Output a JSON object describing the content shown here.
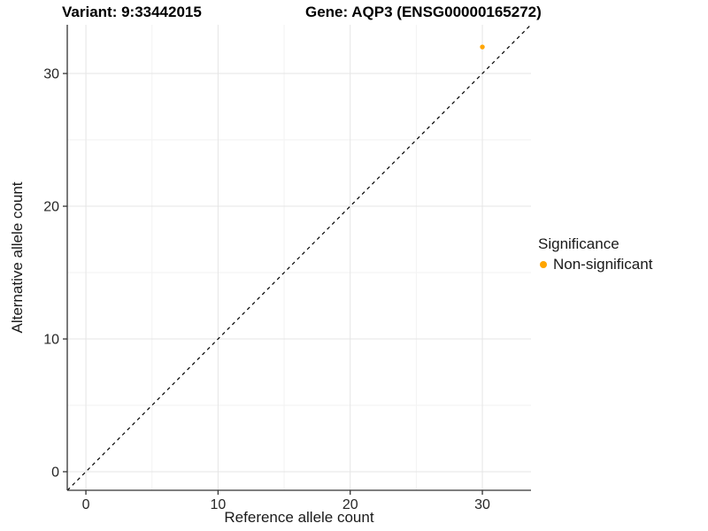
{
  "titles": {
    "left": "Variant: 9:33442015",
    "right": "Gene: AQP3 (ENSG00000165272)"
  },
  "chart_data": {
    "type": "scatter",
    "title_left": "Variant: 9:33442015",
    "title_right": "Gene: AQP3 (ENSG00000165272)",
    "xlabel": "Reference allele count",
    "ylabel": "Alternative allele count",
    "xlim": [
      -1.41,
      33.68
    ],
    "ylim": [
      -1.4,
      33.67
    ],
    "xticks": [
      0,
      10,
      20,
      30
    ],
    "yticks": [
      0,
      10,
      20,
      30
    ],
    "xminor": [
      5,
      15,
      25
    ],
    "yminor": [
      5,
      15,
      25
    ],
    "grid": true,
    "identity_line": {
      "style": "dashed",
      "color": "#000000"
    },
    "series": [
      {
        "name": "Non-significant",
        "color": "#FFA500",
        "points": [
          {
            "x": 30,
            "y": 32
          }
        ]
      }
    ],
    "legend": {
      "title": "Significance",
      "position": "right",
      "items": [
        {
          "label": "Non-significant",
          "color": "#FFA500"
        }
      ]
    },
    "colors": {
      "grid_major": "#e5e5e5",
      "grid_minor": "#f2f2f2",
      "axis_line": "#333333",
      "tick_text": "#262626",
      "point": "#FFA500"
    }
  }
}
